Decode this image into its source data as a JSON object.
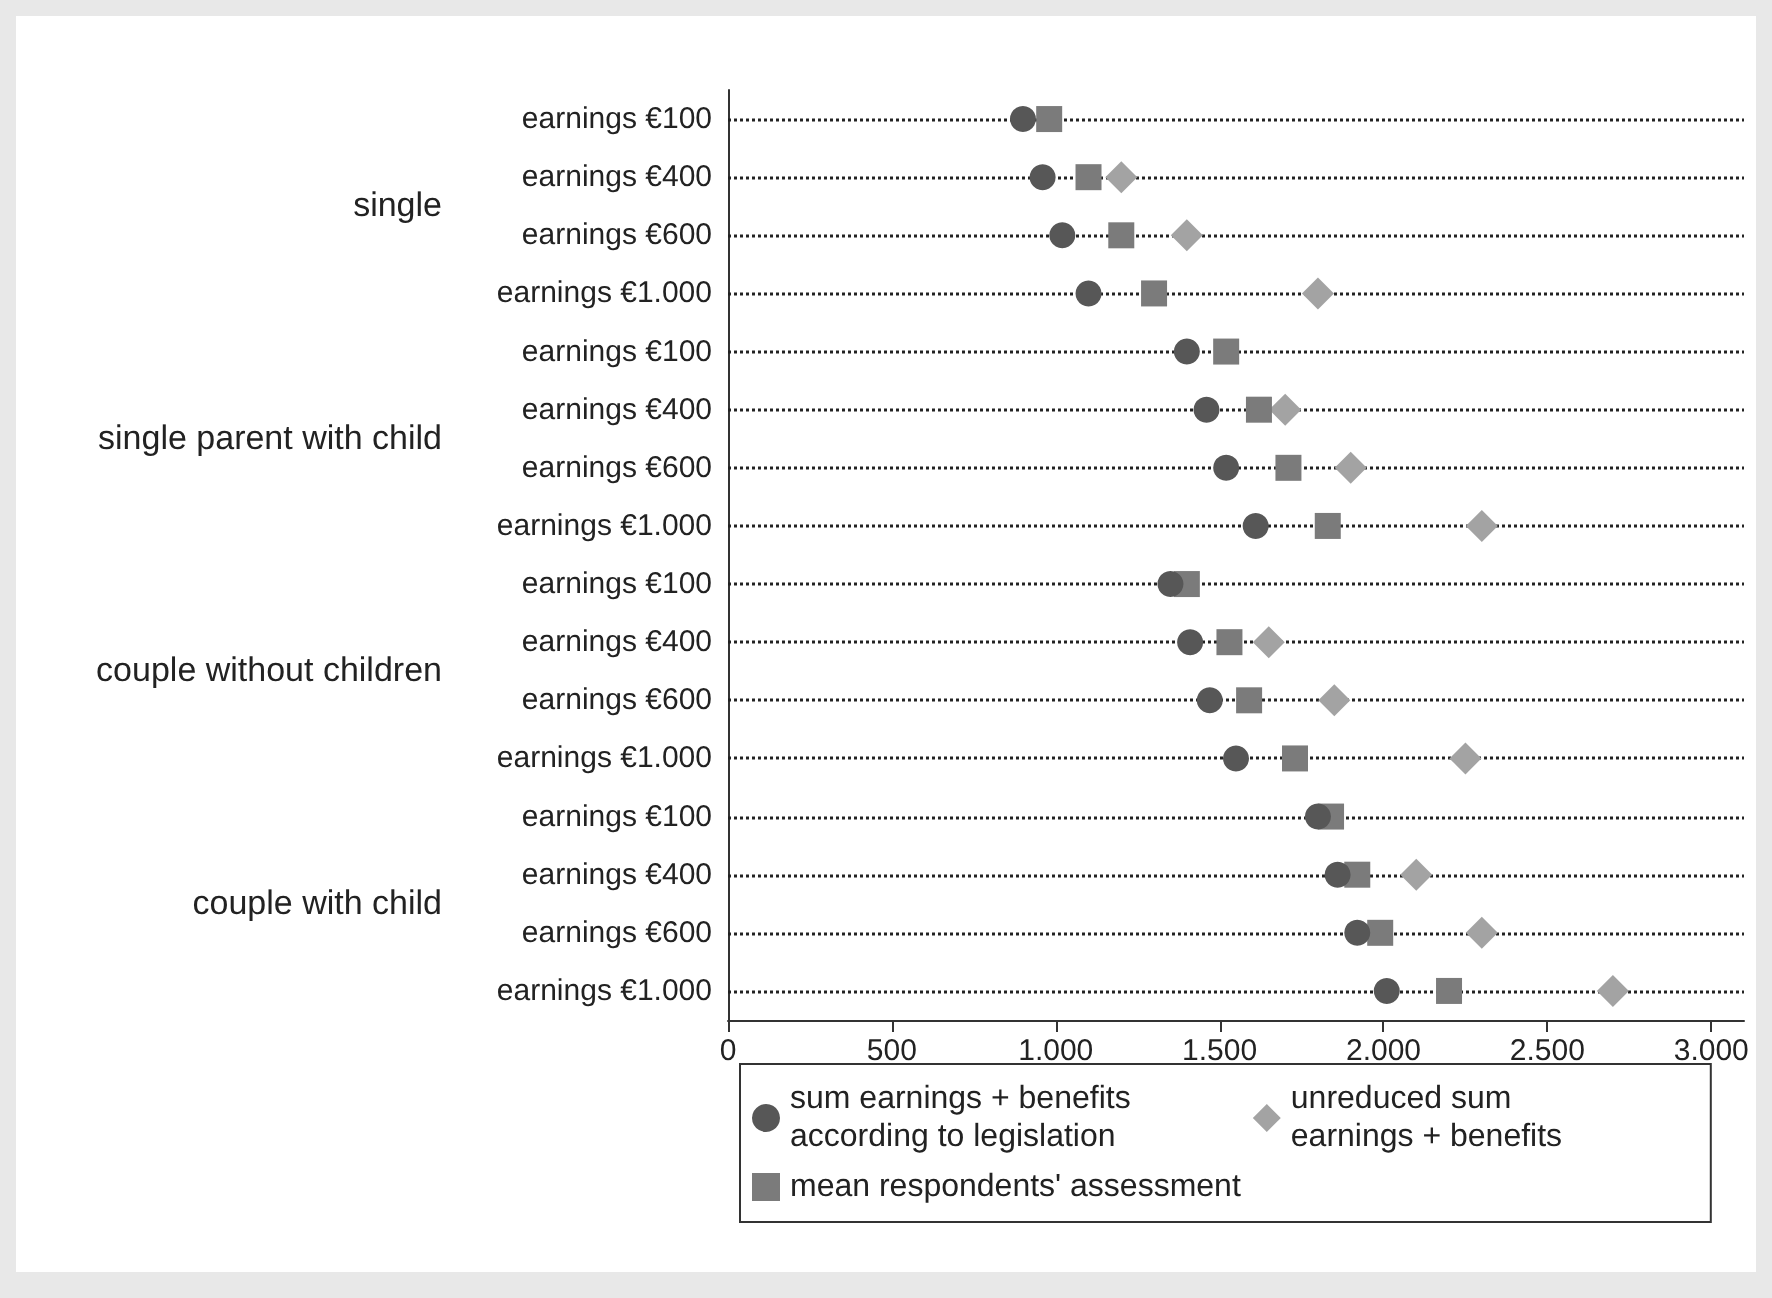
{
  "chart_data": {
    "type": "scatter",
    "orientation": "horizontal",
    "categories": [
      "earnings €100",
      "earnings €400",
      "earnings €600",
      "earnings €1.000",
      "earnings €100",
      "earnings €400",
      "earnings €600",
      "earnings €1.000",
      "earnings €100",
      "earnings €400",
      "earnings €600",
      "earnings €1.000",
      "earnings €100",
      "earnings €400",
      "earnings €600",
      "earnings €1.000"
    ],
    "annotations": [
      "single",
      "single parent with child",
      "couple without children",
      "couple with child"
    ],
    "series": [
      {
        "name": "sum earnings + benefits\naccording to legislation",
        "color": "#575757",
        "marker": "circle",
        "values": [
          900,
          960,
          1020,
          1100,
          1400,
          1460,
          1520,
          1610,
          1350,
          1410,
          1470,
          1550,
          1800,
          1860,
          1920,
          2010
        ]
      },
      {
        "name": "mean respondents' assessment",
        "color": "#7b7b7b",
        "marker": "square",
        "values": [
          980,
          1100,
          1200,
          1300,
          1520,
          1620,
          1710,
          1830,
          1400,
          1530,
          1590,
          1730,
          1840,
          1920,
          1990,
          2200
        ]
      },
      {
        "name": "unreduced sum\nearnings + benefits",
        "color": "#a3a3a3",
        "marker": "diamond",
        "values": [
          null,
          1200,
          1400,
          1800,
          null,
          1700,
          1900,
          2300,
          null,
          1650,
          1850,
          2250,
          null,
          2100,
          2300,
          2700
        ]
      }
    ],
    "xlim": [
      0,
      3100
    ],
    "xticks": [
      0,
      {
        "value": 500,
        "label": "500"
      },
      {
        "value": 1000,
        "label": "1.000"
      },
      {
        "value": 1500,
        "label": "1.500"
      },
      {
        "value": 2000,
        "label": "2.000"
      },
      {
        "value": 2500,
        "label": "2.500"
      },
      {
        "value": 3000,
        "label": "3.000"
      }
    ],
    "grid": "y",
    "line_style": "dotted",
    "legend": "bottom"
  }
}
